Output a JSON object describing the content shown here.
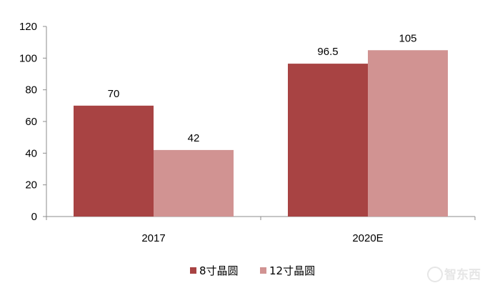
{
  "chart_data": {
    "type": "bar",
    "title": "",
    "xlabel": "",
    "ylabel": "",
    "categories": [
      "2017",
      "2020E"
    ],
    "series": [
      {
        "name": "8寸晶圆",
        "values": [
          70,
          96.5
        ],
        "color": "#a84343"
      },
      {
        "name": "12寸晶圆",
        "values": [
          42,
          105
        ],
        "color": "#d19392"
      }
    ],
    "data_labels": [
      [
        "70",
        "96.5"
      ],
      [
        "42",
        "105"
      ]
    ],
    "ylim": [
      0,
      120
    ],
    "yticks": [
      "0",
      "20",
      "40",
      "60",
      "80",
      "100",
      "120"
    ],
    "grid": false,
    "legend_position": "bottom"
  },
  "watermark": "智东西"
}
